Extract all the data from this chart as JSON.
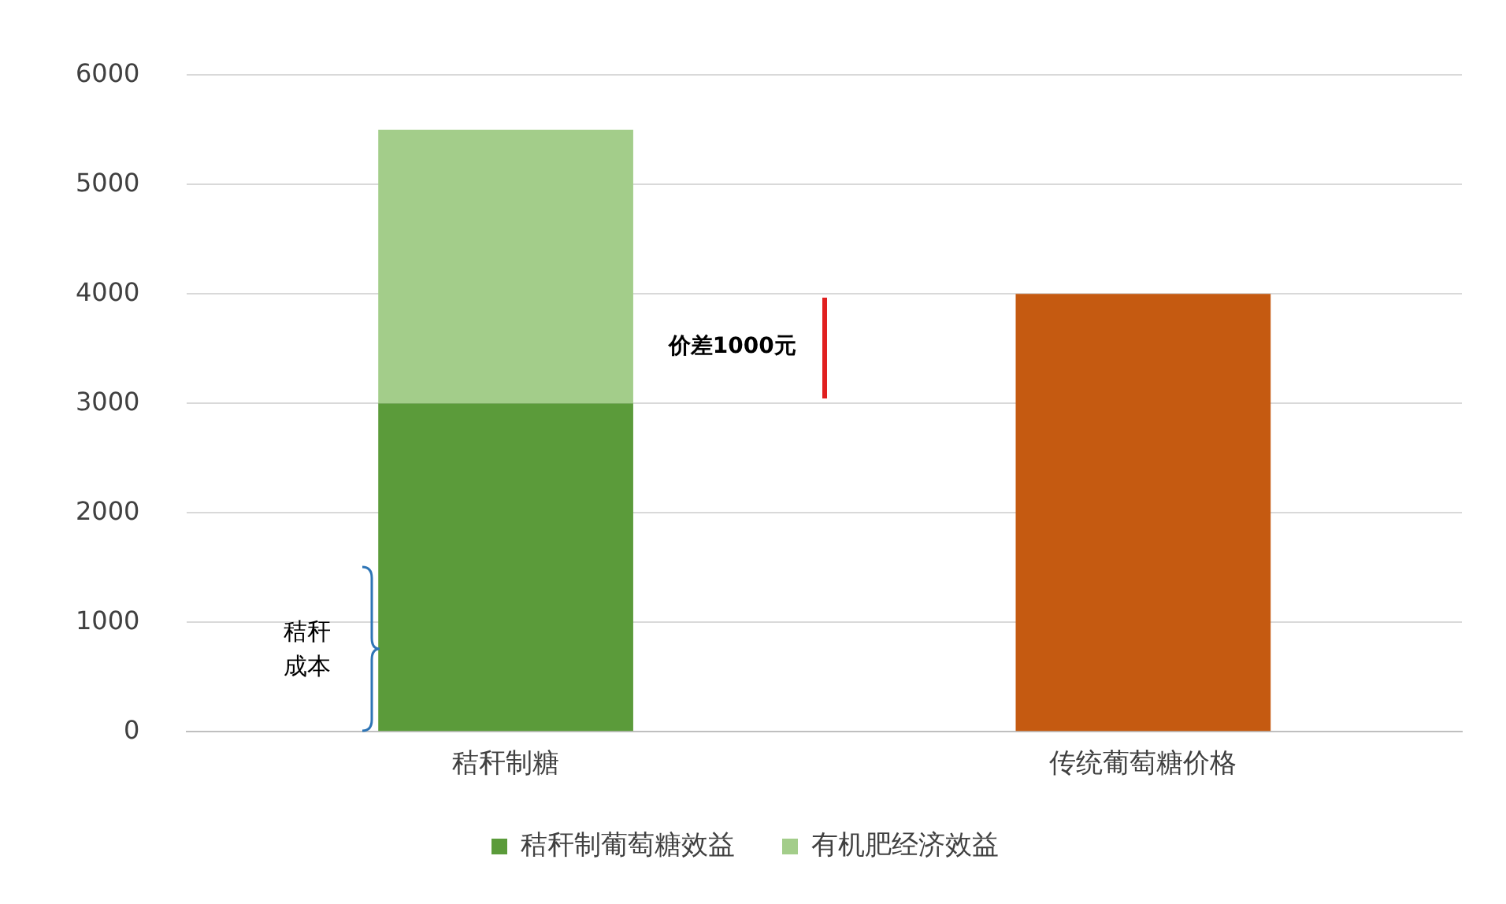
{
  "chart_data": {
    "type": "bar",
    "stacked": true,
    "categories": [
      "秸秆制糖",
      "传统葡萄糖价格"
    ],
    "series": [
      {
        "name": "秸秆制葡萄糖效益",
        "color": "#5b9b3a",
        "values": [
          3000,
          null
        ]
      },
      {
        "name": "有机肥经济效益",
        "color": "#a3cd8a",
        "values": [
          2500,
          null
        ]
      },
      {
        "color": "#c55a11",
        "values": [
          null,
          4000
        ]
      }
    ],
    "ylim": [
      0,
      6000
    ],
    "yticks": [
      0,
      1000,
      2000,
      3000,
      4000,
      5000,
      6000
    ],
    "grid": "y",
    "legend": "bottom",
    "annotations": [
      "价差1000元",
      "秸秆成本"
    ]
  }
}
